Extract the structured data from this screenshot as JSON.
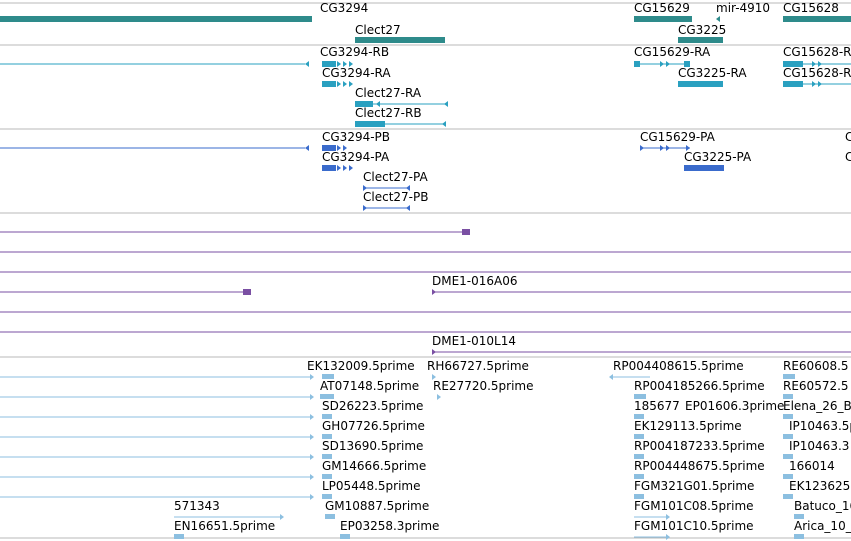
{
  "colors": {
    "gene": "#2e8b8b",
    "transcript": "#2aa0c0",
    "protein": "#3a6bcc",
    "clone": "#7a4fa3",
    "est": "#8cbfe0",
    "separator": "#b8b8b8"
  },
  "tracks": {
    "genes": {
      "labels": [
        "CG3294",
        "Clect27",
        "CG15629",
        "mir-4910",
        "CG15628",
        "CG3225"
      ]
    },
    "transcripts": {
      "labels": [
        "CG3294-RB",
        "CG3294-RA",
        "Clect27-RA",
        "Clect27-RB",
        "CG15629-RA",
        "CG3225-RA",
        "CG15628-R",
        "CG15628-R"
      ]
    },
    "proteins": {
      "labels": [
        "CG3294-PB",
        "CG3294-PA",
        "Clect27-PA",
        "Clect27-PB",
        "CG15629-PA",
        "CG3225-PA",
        "C",
        "C"
      ]
    },
    "clones": {
      "labels": [
        "DME1-016A06",
        "DME1-010L14"
      ]
    },
    "ests": {
      "labels": [
        "EK132009.5prime",
        "RH66727.5prime",
        "RP004408615.5prime",
        "RE60608.5",
        "AT07148.5prime",
        "RE27720.5prime",
        "RP004185266.5prime",
        "RE60572.5",
        "SD26223.5prime",
        "185677",
        "EP01606.3prime",
        "Elena_26_B",
        "GH07726.5prime",
        "EK129113.5prime",
        "IP10463.5p",
        "SD13690.5prime",
        "RP004187233.5prime",
        "IP10463.3",
        "GM14666.5prime",
        "RP004448675.5prime",
        "166014",
        "LP05448.5prime",
        "FGM321G01.5prime",
        "EK123625",
        "571343",
        "GM10887.5prime",
        "FGM101C08.5prime",
        "Batuco_16",
        "EN16651.5prime",
        "EP03258.3prime",
        "FGM101C10.5prime",
        "Arica_10_"
      ]
    }
  }
}
